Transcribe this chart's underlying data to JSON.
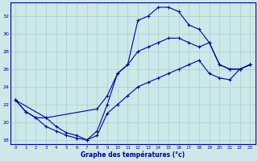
{
  "title": "Graphe des températures (°c)",
  "bg_color": "#cce8e8",
  "grid_color": "#aacfcf",
  "line_color": "#0000aa",
  "ylim": [
    17.5,
    33.5
  ],
  "yticks": [
    18,
    20,
    22,
    24,
    26,
    28,
    30,
    32
  ],
  "x_labels": [
    "0",
    "1",
    "2",
    "3",
    "4",
    "5",
    "6",
    "7",
    "8",
    "9",
    "10",
    "11",
    "12",
    "13",
    "14",
    "15",
    "16",
    "17",
    "18",
    "19",
    "20",
    "21",
    "22",
    "23"
  ],
  "curve1_x": [
    0,
    1,
    2,
    3,
    4,
    5,
    6,
    7,
    8,
    9,
    10,
    11,
    12,
    13,
    14,
    15,
    16,
    17,
    18,
    19,
    20,
    21,
    22,
    23
  ],
  "curve1_y": [
    22.5,
    21.2,
    20.5,
    19.5,
    19.0,
    18.5,
    18.2,
    18.0,
    19.0,
    22.0,
    25.5,
    26.5,
    31.5,
    32.0,
    33.0,
    33.0,
    32.5,
    31.0,
    30.5,
    29.0,
    26.5,
    26.0,
    26.0,
    26.5
  ],
  "curve2_x": [
    0,
    3,
    8,
    9,
    10,
    11,
    12,
    13,
    14,
    15,
    16,
    17,
    18,
    19,
    20,
    21,
    22,
    23
  ],
  "curve2_y": [
    22.5,
    20.5,
    21.5,
    23.0,
    25.5,
    26.5,
    28.0,
    28.5,
    29.0,
    29.5,
    29.5,
    29.0,
    28.5,
    29.0,
    26.5,
    26.0,
    26.0,
    26.5
  ],
  "curve3_x": [
    0,
    1,
    2,
    3,
    4,
    5,
    6,
    7,
    8,
    9,
    10,
    11,
    12,
    13,
    14,
    15,
    16,
    17,
    18,
    19,
    20,
    21,
    22,
    23
  ],
  "curve3_y": [
    22.5,
    21.2,
    20.5,
    20.5,
    19.5,
    18.8,
    18.5,
    18.0,
    18.5,
    21.0,
    22.0,
    23.0,
    24.0,
    24.5,
    25.0,
    25.5,
    26.0,
    26.5,
    27.0,
    25.5,
    25.0,
    24.8,
    26.0,
    26.5
  ]
}
